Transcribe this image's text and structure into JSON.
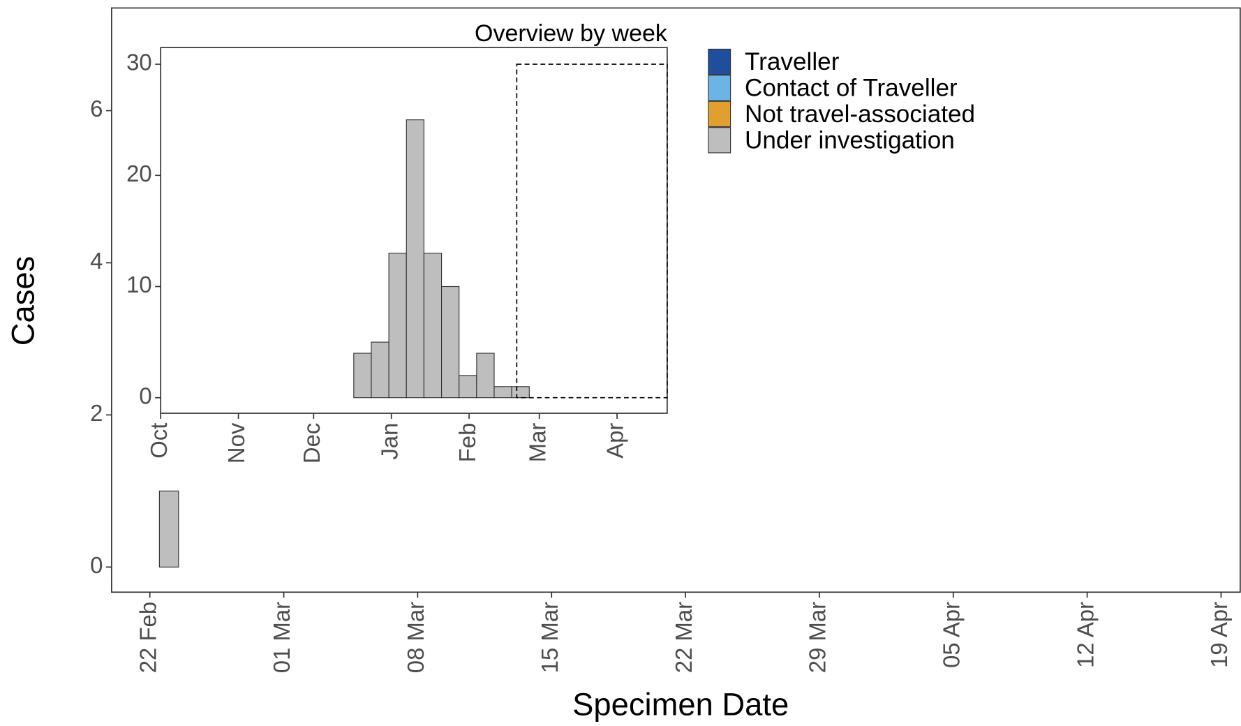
{
  "chart_data": [
    {
      "type": "bar",
      "x_label": "Specimen Date",
      "y_label": "Cases",
      "x": [
        "23 Feb"
      ],
      "values": [
        1
      ],
      "color": "#bebebe",
      "xlim": [
        "20 Feb",
        "20 Apr"
      ],
      "xticks": [
        "22 Feb",
        "01 Mar",
        "08 Mar",
        "15 Mar",
        "22 Mar",
        "29 Mar",
        "05 Apr",
        "12 Apr",
        "19 Apr"
      ],
      "ylim": [
        -0.33,
        7.35
      ],
      "yticks": [
        0,
        2,
        4,
        6
      ],
      "legend": [
        {
          "name": "Traveller",
          "color": "#1f4e9c"
        },
        {
          "name": "Contact of Traveller",
          "color": "#6cb4e4"
        },
        {
          "name": "Not travel-associated",
          "color": "#e0a030"
        },
        {
          "name": "Under investigation",
          "color": "#bebebe"
        }
      ]
    },
    {
      "type": "histogram",
      "title": "Overview by week",
      "bins": [
        77,
        84,
        91,
        98,
        105,
        112,
        119,
        126,
        133,
        140,
        147
      ],
      "values": [
        4,
        5,
        13,
        25,
        13,
        10,
        2,
        4,
        1,
        1
      ],
      "color": "#bebebe",
      "xlim": [
        0,
        202
      ],
      "xticks": [
        {
          "value": 0,
          "label": "Oct"
        },
        {
          "value": 31,
          "label": "Nov"
        },
        {
          "value": 61,
          "label": "Dec"
        },
        {
          "value": 92,
          "label": "Jan"
        },
        {
          "value": 123,
          "label": "Feb"
        },
        {
          "value": 151,
          "label": "Mar"
        },
        {
          "value": 182,
          "label": "Apr"
        }
      ],
      "ylim": [
        -1.4,
        31.5
      ],
      "yticks": [
        0,
        10,
        20,
        30
      ],
      "zoom_box": {
        "x": [
          142,
          202
        ],
        "y": [
          0,
          30
        ]
      }
    }
  ]
}
